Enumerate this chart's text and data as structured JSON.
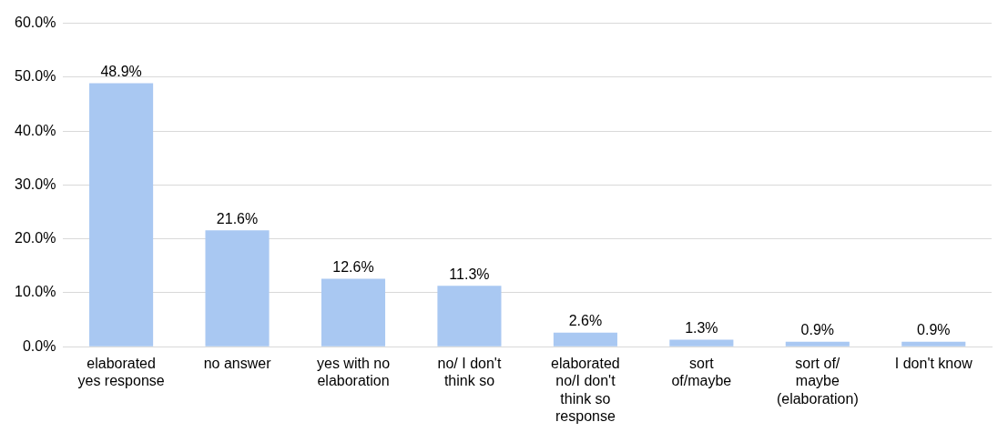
{
  "chart_data": {
    "type": "bar",
    "categories": [
      "elaborated yes response",
      "no answer",
      "yes with no elaboration",
      "no/ I don't think so",
      "elaborated no/I don't think so response",
      "sort of/maybe",
      "sort of/ maybe (elaboration)",
      "I don't know"
    ],
    "values": [
      48.9,
      21.6,
      12.6,
      11.3,
      2.6,
      1.3,
      0.9,
      0.9
    ],
    "value_labels": [
      "48.9%",
      "21.6%",
      "12.6%",
      "11.3%",
      "2.6%",
      "1.3%",
      "0.9%",
      "0.9%"
    ],
    "color": "#a9c8f2",
    "ylim": [
      0,
      60
    ],
    "yticks": [
      {
        "value": 0,
        "label": "0.0%"
      },
      {
        "value": 10,
        "label": "10.0%"
      },
      {
        "value": 20,
        "label": "20.0%"
      },
      {
        "value": 30,
        "label": "30.0%"
      },
      {
        "value": 40,
        "label": "40.0%"
      },
      {
        "value": 50,
        "label": "50.0%"
      },
      {
        "value": 60,
        "label": "60.0%"
      }
    ],
    "grid": "y",
    "legend": false
  }
}
